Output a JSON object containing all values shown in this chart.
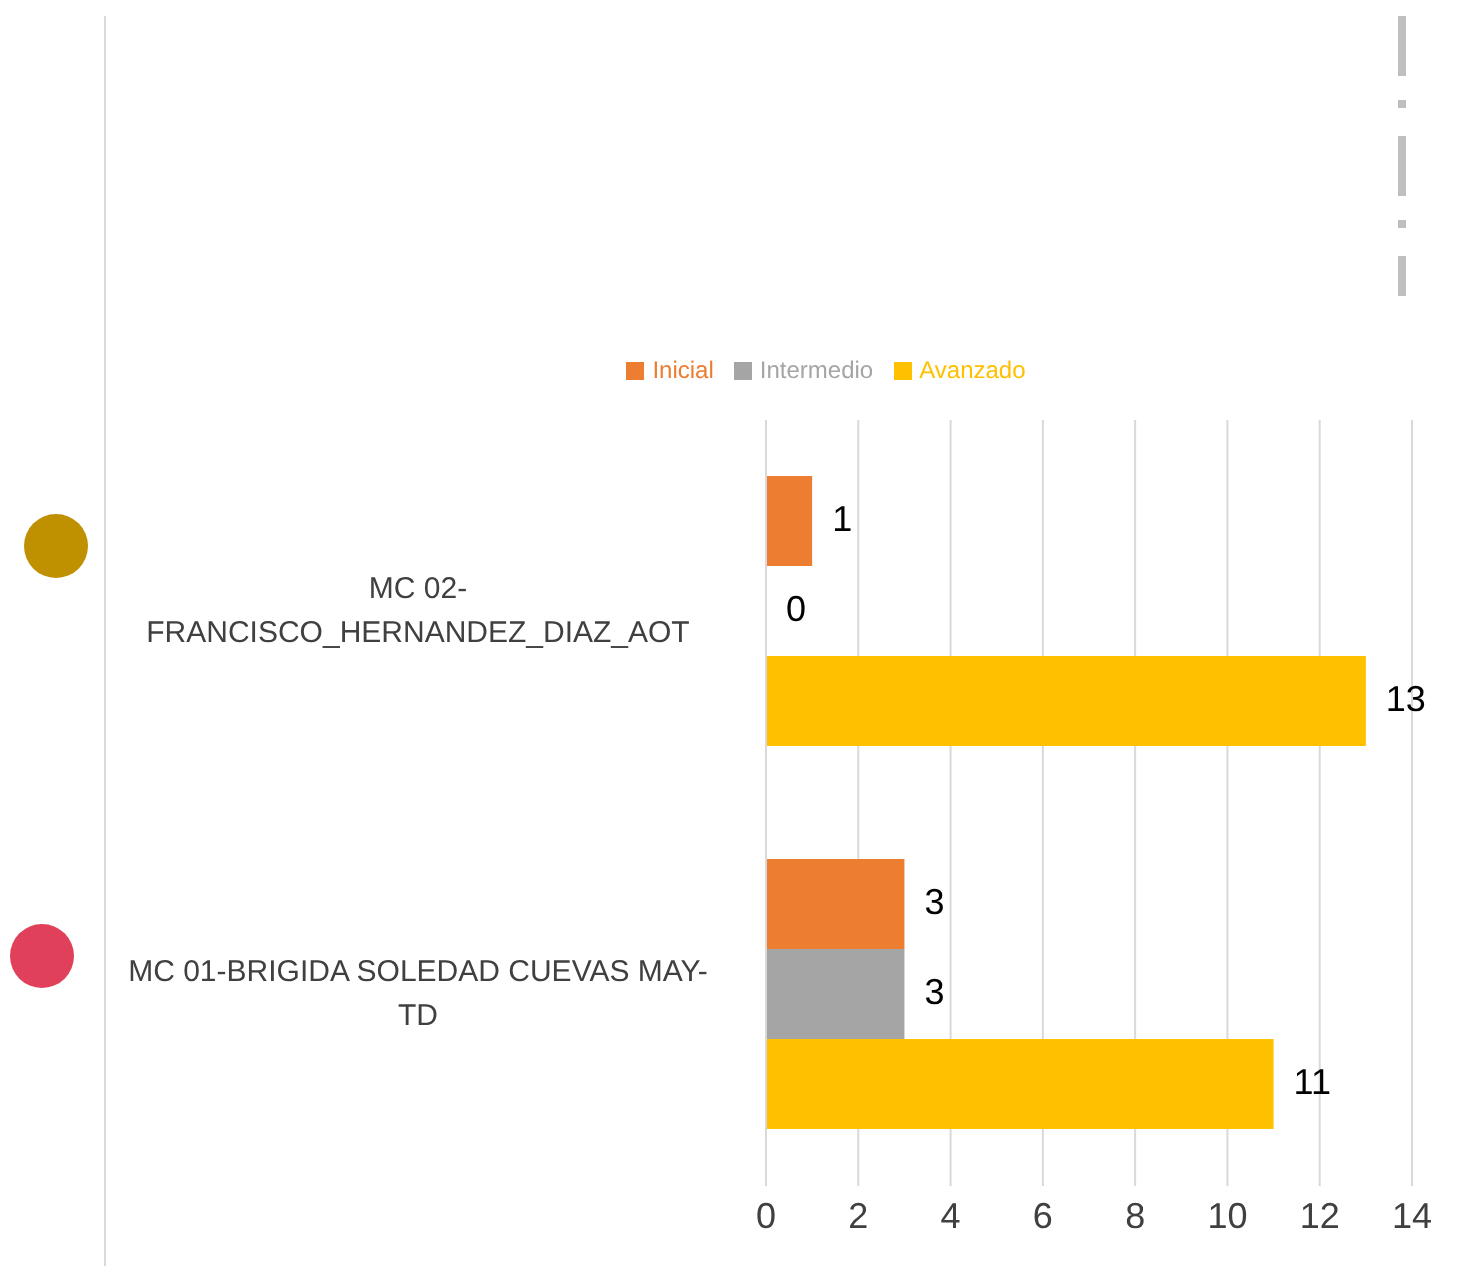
{
  "chart_data": {
    "type": "bar",
    "orientation": "horizontal",
    "categories": [
      "MC 02-FRANCISCO_HERNANDEZ_DIAZ_AOT",
      "MC 01-BRIGIDA SOLEDAD CUEVAS MAY-TD"
    ],
    "series": [
      {
        "name": "Inicial",
        "color": "#ed7d31",
        "values": [
          1,
          3
        ]
      },
      {
        "name": "Intermedio",
        "color": "#a5a5a5",
        "values": [
          0,
          3
        ]
      },
      {
        "name": "Avanzado",
        "color": "#ffc000",
        "values": [
          13,
          11
        ]
      }
    ],
    "xlim": [
      0,
      14
    ],
    "xticks": [
      0,
      2,
      4,
      6,
      8,
      10,
      12,
      14
    ],
    "grid": "x",
    "legend": "top",
    "data_labels": true
  }
}
